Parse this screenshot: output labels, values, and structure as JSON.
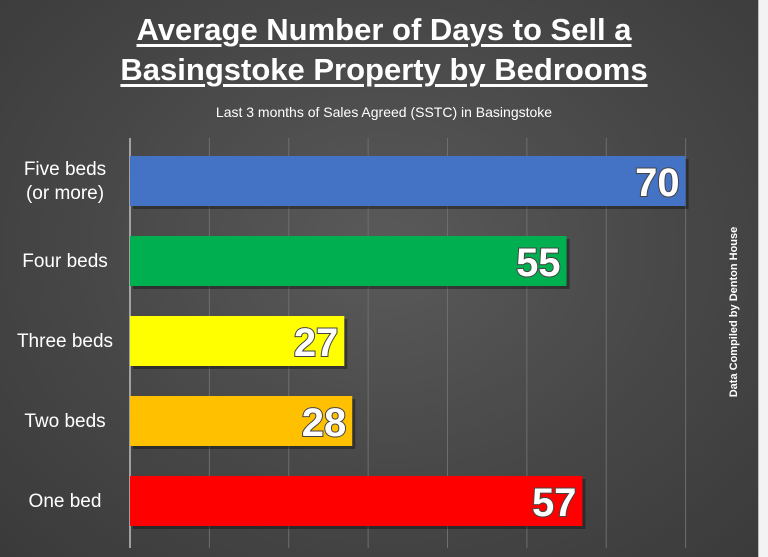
{
  "chart_data": {
    "type": "bar",
    "orientation": "horizontal",
    "title_line1": "Average Number of Days to Sell a",
    "title_line2": "Basingstoke Property by Bedrooms",
    "subtitle": "Last 3 months of Sales Agreed (SSTC) in Basingstoke",
    "credit": "Data Compiled by Denton House",
    "categories": [
      [
        "Five beds",
        "(or more)"
      ],
      [
        "Four beds"
      ],
      [
        "Three beds"
      ],
      [
        "Two beds"
      ],
      [
        "One bed"
      ]
    ],
    "values": [
      70,
      55,
      27,
      28,
      57
    ],
    "colors": [
      "#4472c4",
      "#00b050",
      "#ffff00",
      "#ffc000",
      "#ff0000"
    ],
    "xlim": [
      0,
      80
    ],
    "grid": true,
    "legend": "none"
  }
}
